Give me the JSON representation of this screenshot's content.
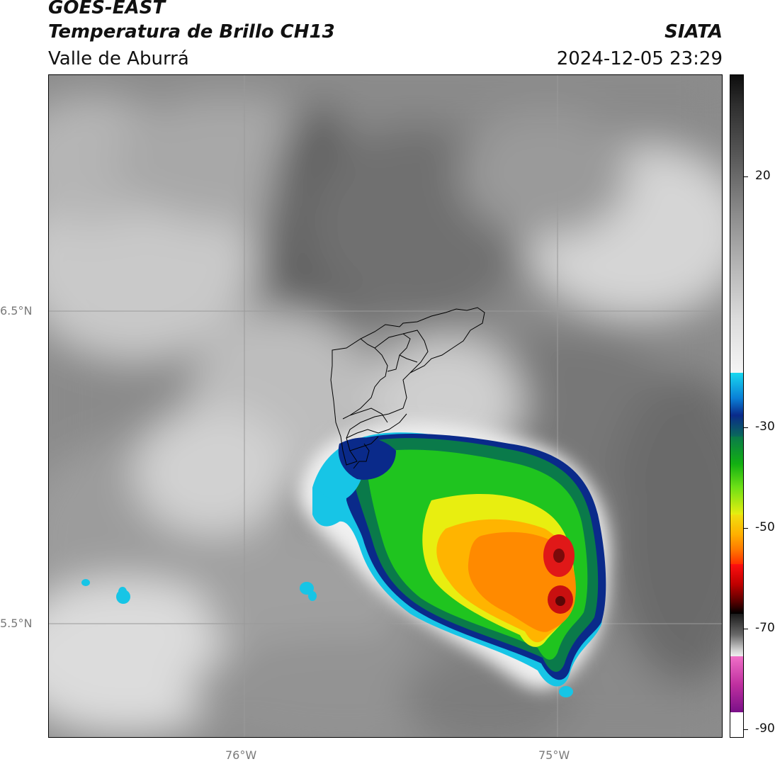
{
  "header": {
    "satellite": "GOES-EAST",
    "product": "Temperatura de Brillo CH13",
    "region": "Valle de Aburrá",
    "org": "SIATA",
    "datetime": "2024-12-05 23:29"
  },
  "axes": {
    "lat_labels": [
      "6.5°N",
      "5.5°N"
    ],
    "lon_labels": [
      "76°W",
      "75°W"
    ]
  },
  "colorbar": {
    "labels": [
      "20",
      "-30",
      "-50",
      "-70",
      "-90"
    ]
  },
  "colors": {
    "background_cloud_gray": "#8c8c8c",
    "boundary_lines": "#000000",
    "grid_lines": "#9a9a9a"
  }
}
